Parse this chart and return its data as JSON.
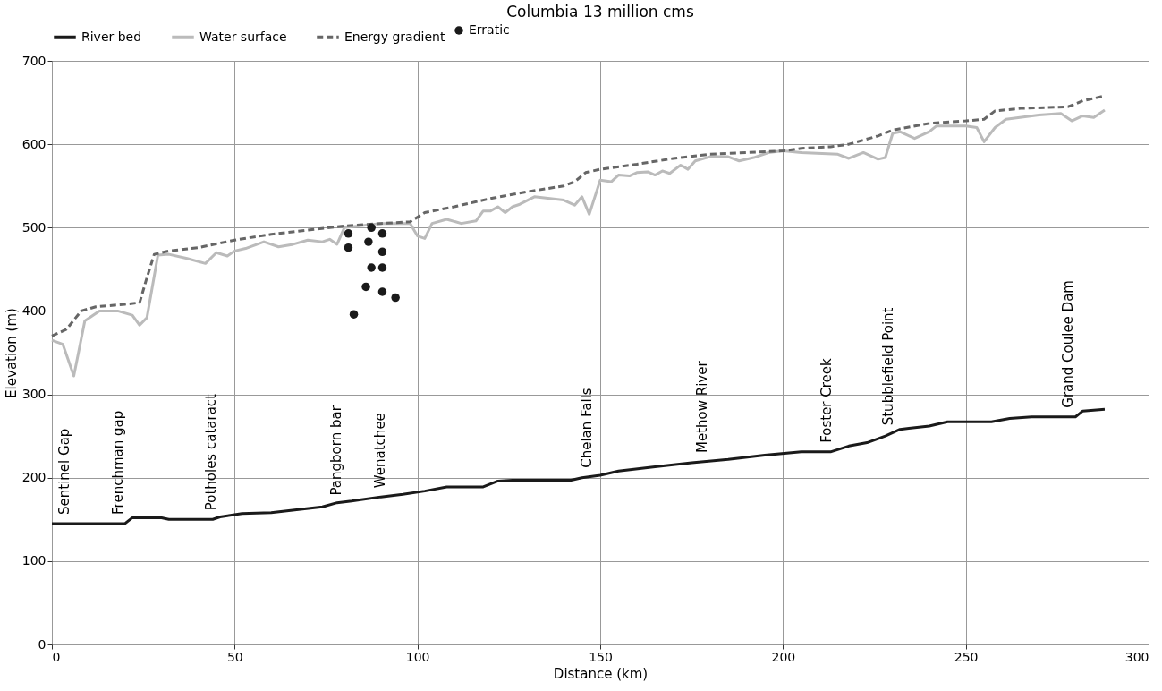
{
  "chart_data": {
    "type": "line",
    "title": "Columbia 13 million cms",
    "xlabel": "Distance (km)",
    "ylabel": "Elevation (m)",
    "xlim": [
      0,
      300
    ],
    "xticks": [
      0,
      50,
      100,
      150,
      200,
      250,
      300
    ],
    "ylim": [
      0,
      700
    ],
    "yticks": [
      0,
      100,
      200,
      300,
      400,
      500,
      600,
      700
    ],
    "grid": true,
    "legend": "top",
    "series": [
      {
        "name": "River bed",
        "color": "#1a1a1a",
        "line_style": "solid",
        "x": [
          0,
          20,
          22,
          30,
          32,
          44,
          46,
          52,
          60,
          68,
          74,
          78,
          82,
          90,
          96,
          102,
          108,
          118,
          122,
          126,
          142,
          145,
          150,
          155,
          165,
          175,
          185,
          195,
          205,
          213,
          218,
          223,
          228,
          232,
          240,
          245,
          257,
          262,
          268,
          280,
          282,
          288
        ],
        "values": [
          145,
          145,
          152,
          152,
          150,
          150,
          153,
          157,
          158,
          162,
          165,
          170,
          172,
          177,
          180,
          184,
          189,
          189,
          196,
          197,
          197,
          200,
          203,
          208,
          213,
          218,
          222,
          227,
          231,
          231,
          238,
          242,
          250,
          258,
          262,
          267,
          267,
          271,
          273,
          273,
          280,
          282
        ]
      },
      {
        "name": "Water surface",
        "color": "#bbbbbb",
        "line_style": "solid",
        "x": [
          0,
          3,
          6,
          9,
          13,
          18,
          22,
          24,
          26,
          29,
          32,
          37,
          42,
          45,
          48,
          50,
          53,
          58,
          62,
          66,
          70,
          74,
          76,
          78,
          80,
          90,
          98,
          100,
          102,
          104,
          108,
          112,
          116,
          118,
          120,
          122,
          124,
          126,
          128,
          132,
          140,
          143,
          145,
          147,
          150,
          153,
          155,
          158,
          160,
          163,
          165,
          167,
          169,
          172,
          174,
          176,
          180,
          185,
          188,
          192,
          196,
          200,
          205,
          215,
          218,
          222,
          226,
          228,
          230,
          232,
          236,
          240,
          242,
          250,
          253,
          255,
          258,
          261,
          270,
          276,
          279,
          282,
          285,
          288
        ],
        "values": [
          365,
          360,
          322,
          388,
          400,
          400,
          395,
          383,
          392,
          467,
          468,
          463,
          457,
          470,
          466,
          472,
          475,
          483,
          477,
          480,
          485,
          483,
          486,
          480,
          500,
          505,
          505,
          490,
          487,
          505,
          510,
          505,
          508,
          520,
          520,
          525,
          518,
          525,
          528,
          537,
          533,
          527,
          537,
          516,
          557,
          555,
          563,
          562,
          566,
          567,
          563,
          568,
          565,
          575,
          570,
          580,
          585,
          585,
          580,
          584,
          590,
          592,
          590,
          588,
          583,
          590,
          582,
          584,
          613,
          615,
          607,
          615,
          622,
          622,
          620,
          603,
          620,
          630,
          635,
          637,
          628,
          634,
          632,
          641
        ]
      },
      {
        "name": "Energy gradient",
        "color": "#666666",
        "line_style": "dashed",
        "x": [
          0,
          4,
          8,
          12,
          20,
          24,
          26,
          28,
          32,
          40,
          50,
          60,
          70,
          80,
          90,
          98,
          102,
          110,
          120,
          130,
          140,
          143,
          146,
          150,
          160,
          170,
          180,
          190,
          200,
          205,
          213,
          218,
          222,
          226,
          230,
          240,
          250,
          255,
          258,
          265,
          278,
          282,
          288
        ],
        "values": [
          370,
          378,
          400,
          405,
          408,
          410,
          440,
          468,
          472,
          476,
          485,
          492,
          497,
          502,
          505,
          507,
          518,
          525,
          535,
          543,
          550,
          555,
          566,
          570,
          576,
          583,
          588,
          590,
          592,
          595,
          597,
          600,
          605,
          610,
          617,
          625,
          628,
          630,
          640,
          643,
          645,
          652,
          658
        ]
      },
      {
        "name": "Erratic",
        "color": "#1a1a1a",
        "type": "scatter",
        "marker": "circle",
        "x": [
          81.1,
          81.1,
          87.4,
          86.6,
          90.4,
          90.4,
          87.4,
          90.4,
          85.9,
          90.4,
          94.0,
          82.6
        ],
        "values": [
          493,
          476,
          500,
          483,
          493,
          471,
          452,
          452,
          429,
          423,
          416,
          396
        ]
      }
    ],
    "annotations": [
      {
        "text": "Sentinel Gap",
        "x": 3.5,
        "y": 145
      },
      {
        "text": "Frenchman gap",
        "x": 18,
        "y": 145
      },
      {
        "text": "Potholes cataract",
        "x": 43.6,
        "y": 150
      },
      {
        "text": "Pangborn bar",
        "x": 77.8,
        "y": 168
      },
      {
        "text": "Wenatchee",
        "x": 89.7,
        "y": 177
      },
      {
        "text": "Chelan Falls",
        "x": 146.4,
        "y": 201
      },
      {
        "text": "Methow River",
        "x": 178,
        "y": 219
      },
      {
        "text": "Foster Creek",
        "x": 212,
        "y": 231
      },
      {
        "text": "Stubblefield Point",
        "x": 228.8,
        "y": 252
      },
      {
        "text": "Grand Coulee Dam",
        "x": 278,
        "y": 273
      }
    ]
  }
}
